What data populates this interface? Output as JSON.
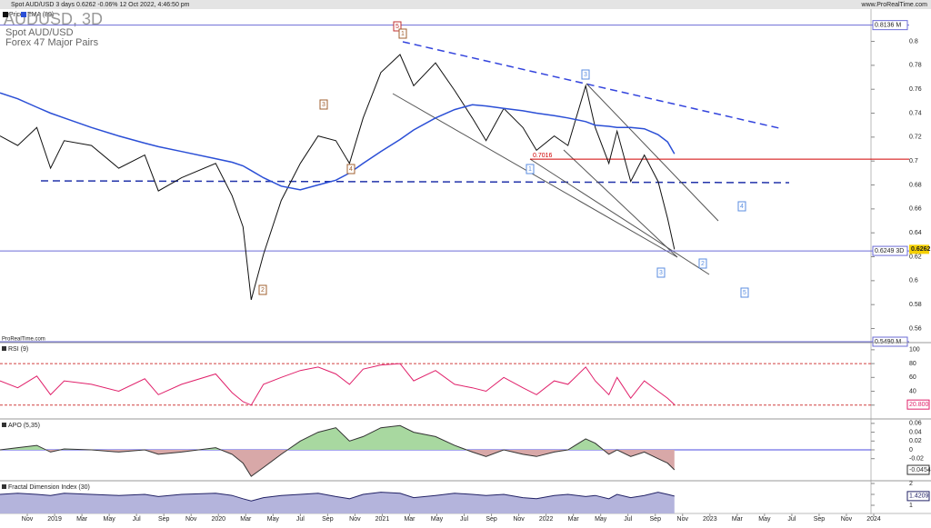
{
  "header": {
    "title": "Spot AUD/USD 3 days 0.6262 -0.06% 12 Oct 2022, 4:46:50 pm",
    "site": "www.ProRealTime.com",
    "watermark": "ProRealTime.com"
  },
  "chart_data": [
    {
      "type": "line",
      "title": "AUDUSD, 3D",
      "subtitle": "Spot AUD/USD",
      "group": "Forex 47 Major Pairs",
      "x": [
        -2.0,
        -0.7,
        0.7,
        1.7,
        2.7,
        4.7,
        6.7,
        8.6,
        9.6,
        11.3,
        13.8,
        15.0,
        15.8,
        16.4,
        17.3,
        18.6,
        20.0,
        21.3,
        22.6,
        23.6,
        24.6,
        25.9,
        27.3,
        28.3,
        29.9,
        31.3,
        32.6,
        33.6,
        34.9,
        36.3,
        37.3,
        38.6,
        39.6,
        40.9,
        41.6,
        42.6,
        43.2,
        44.2,
        45.2,
        46.2,
        46.9,
        47.4
      ],
      "series": [
        {
          "name": "Price",
          "color": "#111111",
          "values": [
            0.721,
            0.713,
            0.728,
            0.694,
            0.717,
            0.713,
            0.694,
            0.705,
            0.675,
            0.686,
            0.698,
            0.671,
            0.645,
            0.584,
            0.622,
            0.667,
            0.698,
            0.721,
            0.717,
            0.698,
            0.736,
            0.774,
            0.789,
            0.763,
            0.782,
            0.759,
            0.736,
            0.717,
            0.744,
            0.728,
            0.709,
            0.721,
            0.713,
            0.763,
            0.728,
            0.698,
            0.725,
            0.683,
            0.705,
            0.683,
            0.652,
            0.6262
          ]
        },
        {
          "name": "EMA (89)",
          "color": "#2b4fd6",
          "values": [
            0.757,
            0.752,
            0.745,
            0.74,
            0.736,
            0.728,
            0.721,
            0.715,
            0.712,
            0.708,
            0.702,
            0.699,
            0.696,
            0.692,
            0.686,
            0.679,
            0.676,
            0.68,
            0.684,
            0.69,
            0.698,
            0.708,
            0.718,
            0.726,
            0.736,
            0.743,
            0.747,
            0.746,
            0.744,
            0.742,
            0.74,
            0.738,
            0.736,
            0.733,
            0.73,
            0.729,
            0.728,
            0.728,
            0.727,
            0.722,
            0.716,
            0.706
          ]
        }
      ],
      "xlim": [
        -2,
        61.8
      ],
      "xticks": [
        {
          "value": 0,
          "label": "Nov"
        },
        {
          "value": 2,
          "label": "2019"
        },
        {
          "value": 4,
          "label": "Mar"
        },
        {
          "value": 6,
          "label": "May"
        },
        {
          "value": 8,
          "label": "Jul"
        },
        {
          "value": 10,
          "label": "Sep"
        },
        {
          "value": 12,
          "label": "Nov"
        },
        {
          "value": 14,
          "label": "2020"
        },
        {
          "value": 16,
          "label": "Mar"
        },
        {
          "value": 18,
          "label": "May"
        },
        {
          "value": 20,
          "label": "Jul"
        },
        {
          "value": 22,
          "label": "Sep"
        },
        {
          "value": 24,
          "label": "Nov"
        },
        {
          "value": 26,
          "label": "2021"
        },
        {
          "value": 28,
          "label": "Mar"
        },
        {
          "value": 30,
          "label": "May"
        },
        {
          "value": 32,
          "label": "Jul"
        },
        {
          "value": 34,
          "label": "Sep"
        },
        {
          "value": 36,
          "label": "Nov"
        },
        {
          "value": 38,
          "label": "2022"
        },
        {
          "value": 40,
          "label": "Mar"
        },
        {
          "value": 42,
          "label": "May"
        },
        {
          "value": 44,
          "label": "Jul"
        },
        {
          "value": 46,
          "label": "Sep"
        },
        {
          "value": 48,
          "label": "Nov"
        },
        {
          "value": 50,
          "label": "2023"
        },
        {
          "value": 52,
          "label": "Mar"
        },
        {
          "value": 54,
          "label": "May"
        },
        {
          "value": 56,
          "label": "Jul"
        },
        {
          "value": 58,
          "label": "Sep"
        },
        {
          "value": 60,
          "label": "Nov"
        },
        {
          "value": 62,
          "label": "2024"
        }
      ],
      "ylim": [
        0.549,
        0.827
      ],
      "yticks": [
        0.56,
        0.58,
        0.6,
        0.62,
        0.64,
        0.66,
        0.68,
        0.7,
        0.72,
        0.74,
        0.76,
        0.78,
        0.8
      ],
      "levels": [
        {
          "value": 0.8136,
          "label": "0.8136 M",
          "color": "#6b6bd6"
        },
        {
          "value": 0.6249,
          "label": "0.6249 3D",
          "color": "#6b6bd6"
        },
        {
          "value": 0.549,
          "label": "0.5490 M",
          "color": "#6b6bd6"
        },
        {
          "value": 0.7016,
          "label": "0.7016",
          "color": "#d00000"
        }
      ],
      "wave_labels": [
        "5",
        "1",
        "3",
        "4",
        "2",
        "1",
        "3",
        "3",
        "2",
        "4",
        "5"
      ]
    },
    {
      "type": "line",
      "title": "RSI (9)",
      "color": "#e0206a",
      "x": [
        -2.0,
        -0.7,
        0.7,
        1.7,
        2.7,
        4.7,
        6.7,
        8.6,
        9.6,
        11.3,
        13.8,
        15.0,
        15.8,
        16.4,
        17.3,
        18.6,
        20.0,
        21.3,
        22.6,
        23.6,
        24.6,
        25.9,
        27.3,
        28.3,
        29.9,
        31.3,
        32.6,
        33.6,
        34.9,
        36.3,
        37.3,
        38.6,
        39.6,
        40.9,
        41.6,
        42.6,
        43.2,
        44.2,
        45.2,
        46.2,
        46.9,
        47.4
      ],
      "values": [
        55,
        45,
        62,
        35,
        55,
        50,
        40,
        58,
        35,
        50,
        65,
        38,
        25,
        20,
        50,
        60,
        70,
        75,
        65,
        50,
        72,
        78,
        80,
        55,
        70,
        50,
        45,
        40,
        60,
        45,
        35,
        55,
        50,
        75,
        55,
        35,
        60,
        30,
        55,
        40,
        30,
        20.8
      ],
      "last_label": "20.800",
      "ylim": [
        0,
        109
      ],
      "yticks": [
        20,
        40,
        60,
        80,
        100
      ],
      "hlines": [
        80,
        20
      ],
      "hline_color": "#d04040"
    },
    {
      "type": "area",
      "title": "APO (5,35)",
      "color": "#333333",
      "fill_above": "#a8d8a0",
      "fill_below": "#d8a8a8",
      "x": [
        -2.0,
        -0.7,
        0.7,
        1.7,
        2.7,
        4.7,
        6.7,
        8.6,
        9.6,
        11.3,
        13.8,
        15.0,
        15.8,
        16.4,
        17.3,
        18.6,
        20.0,
        21.3,
        22.6,
        23.6,
        24.6,
        25.9,
        27.3,
        28.3,
        29.9,
        31.3,
        32.6,
        33.6,
        34.9,
        36.3,
        37.3,
        38.6,
        39.6,
        40.9,
        41.6,
        42.6,
        43.2,
        44.2,
        45.2,
        46.2,
        46.9,
        47.4
      ],
      "values": [
        0,
        0.005,
        0.01,
        -0.005,
        0.002,
        0,
        -0.005,
        0,
        -0.01,
        -0.005,
        0.005,
        -0.01,
        -0.03,
        -0.06,
        -0.04,
        -0.01,
        0.02,
        0.04,
        0.05,
        0.02,
        0.03,
        0.05,
        0.055,
        0.04,
        0.03,
        0.01,
        -0.005,
        -0.015,
        0,
        -0.01,
        -0.015,
        -0.005,
        0,
        0.025,
        0.015,
        -0.01,
        0,
        -0.015,
        -0.005,
        -0.02,
        -0.03,
        -0.0454
      ],
      "ylim": [
        -0.068,
        0.068
      ],
      "yticks": [
        -0.02,
        0,
        0.02,
        0.04,
        0.06
      ],
      "hlines": [
        0
      ],
      "hline_color": "#4a4ae0"
    },
    {
      "type": "area",
      "title": "Fractal Dimension Index (30)",
      "color": "#222266",
      "fill_above": "#b4b4dc",
      "x": [
        -2.0,
        -0.7,
        0.7,
        1.7,
        2.7,
        4.7,
        6.7,
        8.6,
        9.6,
        11.3,
        13.8,
        15.0,
        15.8,
        16.4,
        17.3,
        18.6,
        20.0,
        21.3,
        22.6,
        23.6,
        24.6,
        25.9,
        27.3,
        28.3,
        29.9,
        31.3,
        32.6,
        33.6,
        34.9,
        36.3,
        37.3,
        38.6,
        39.6,
        40.9,
        41.6,
        42.6,
        43.2,
        44.2,
        45.2,
        46.2,
        46.9,
        47.4
      ],
      "values": [
        1.5,
        1.55,
        1.5,
        1.45,
        1.55,
        1.5,
        1.45,
        1.5,
        1.4,
        1.5,
        1.55,
        1.45,
        1.3,
        1.2,
        1.35,
        1.45,
        1.5,
        1.55,
        1.4,
        1.3,
        1.5,
        1.6,
        1.55,
        1.35,
        1.45,
        1.55,
        1.5,
        1.45,
        1.5,
        1.35,
        1.3,
        1.45,
        1.5,
        1.4,
        1.45,
        1.3,
        1.5,
        1.35,
        1.45,
        1.6,
        1.5,
        1.4209
      ],
      "ylim": [
        0.625,
        2.083
      ],
      "yticks": [
        1,
        1.5,
        2
      ]
    }
  ]
}
